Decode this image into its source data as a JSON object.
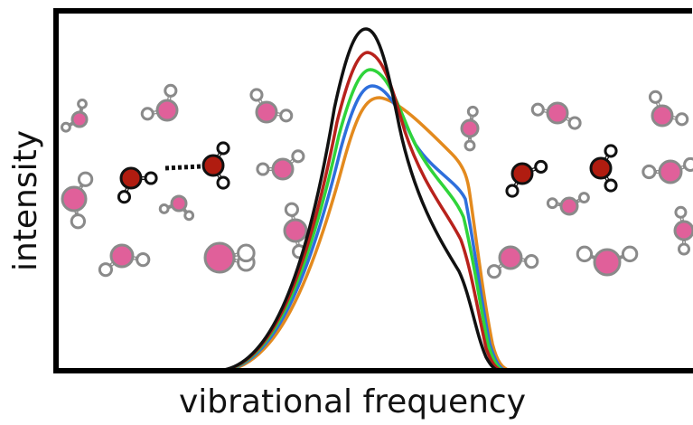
{
  "axes": {
    "x_label": "vibrational frequency",
    "y_label": "intensity"
  }
}
